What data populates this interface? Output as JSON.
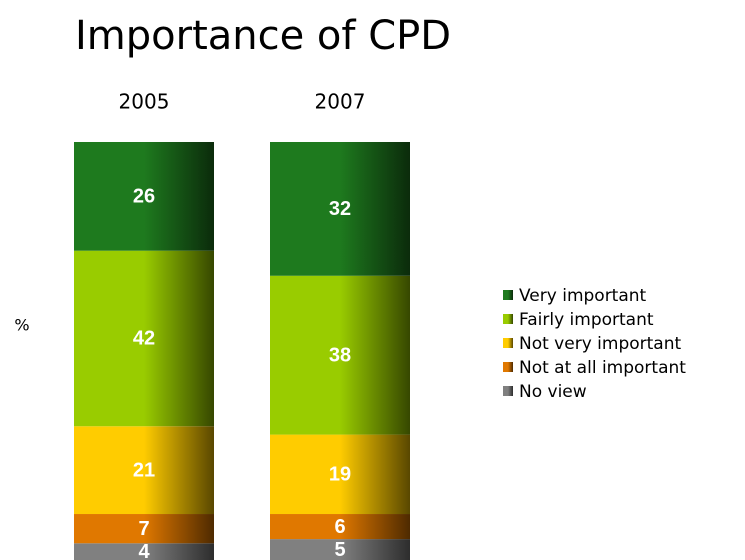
{
  "chart_data": {
    "type": "stacked_bar",
    "title": "Importance of CPD",
    "y_label": "%",
    "categories": [
      "2005",
      "2007"
    ],
    "series": [
      {
        "name": "Very important",
        "color": "#1e7a1e",
        "values": [
          26,
          32
        ]
      },
      {
        "name": "Fairly important",
        "color": "#99cc00",
        "values": [
          42,
          38
        ]
      },
      {
        "name": "Not very important",
        "color": "#ffcc00",
        "values": [
          21,
          19
        ]
      },
      {
        "name": "Not at all important",
        "color": "#e07800",
        "values": [
          7,
          6
        ]
      },
      {
        "name": "No view",
        "color": "#808080",
        "values": [
          4,
          5
        ]
      }
    ],
    "ylim": [
      0,
      100
    ],
    "legend": "right"
  }
}
